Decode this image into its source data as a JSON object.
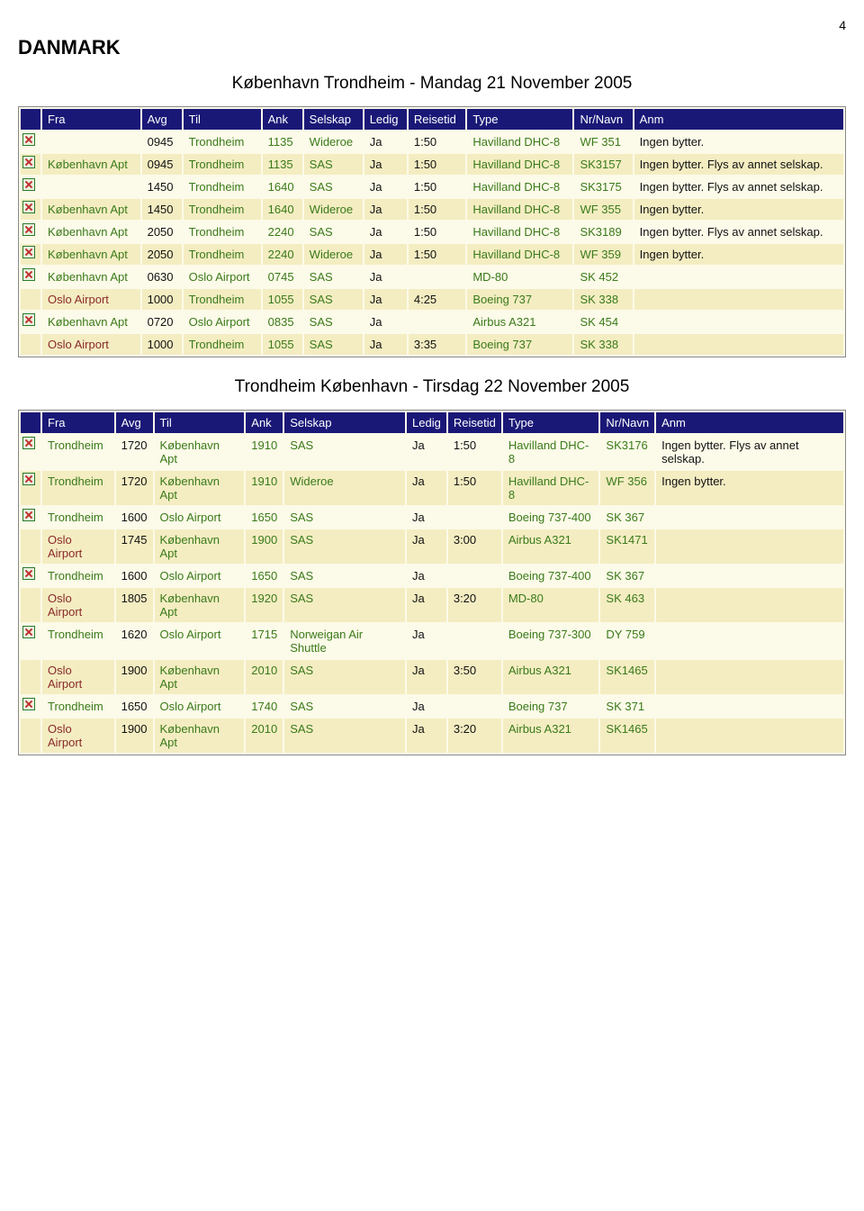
{
  "page_number": "4",
  "country_heading": "DANMARK",
  "colors": {
    "header_bg": "#1a1877",
    "header_text": "#ffffff",
    "row_even": "#fcfae8",
    "row_odd": "#f4edc2",
    "green": "#3a7a1a",
    "maroon": "#8a2a2a"
  },
  "section1": {
    "title": "København Trondheim - Mandag 21 November 2005",
    "headers": [
      "",
      "Fra",
      "Avg",
      "Til",
      "Ank",
      "Selskap",
      "Ledig",
      "Reisetid",
      "Type",
      "Nr/Navn",
      "Anm"
    ],
    "rows": [
      {
        "icon": true,
        "fra": "",
        "avg": "0945",
        "til": "Trondheim",
        "ank": "1135",
        "selskap": "Wideroe",
        "ledig": "Ja",
        "reisetid": "1:50",
        "type": "Havilland DHC-8",
        "nr": "WF 351",
        "anm": "Ingen bytter.",
        "greenCols": [
          "til",
          "ank",
          "selskap",
          "type",
          "nr"
        ]
      },
      {
        "icon": true,
        "fra": "København Apt",
        "avg": "0945",
        "til": "Trondheim",
        "ank": "1135",
        "selskap": "SAS",
        "ledig": "Ja",
        "reisetid": "1:50",
        "type": "Havilland DHC-8",
        "nr": "SK3157",
        "anm": "Ingen bytter. Flys av annet selskap.",
        "greenCols": [
          "fra",
          "til",
          "ank",
          "selskap",
          "type",
          "nr"
        ]
      },
      {
        "icon": true,
        "fra": "",
        "avg": "1450",
        "til": "Trondheim",
        "ank": "1640",
        "selskap": "SAS",
        "ledig": "Ja",
        "reisetid": "1:50",
        "type": "Havilland DHC-8",
        "nr": "SK3175",
        "anm": "Ingen bytter. Flys av annet selskap.",
        "greenCols": [
          "til",
          "ank",
          "selskap",
          "type",
          "nr"
        ]
      },
      {
        "icon": true,
        "fra": "København Apt",
        "avg": "1450",
        "til": "Trondheim",
        "ank": "1640",
        "selskap": "Wideroe",
        "ledig": "Ja",
        "reisetid": "1:50",
        "type": "Havilland DHC-8",
        "nr": "WF 355",
        "anm": "Ingen bytter.",
        "greenCols": [
          "fra",
          "til",
          "ank",
          "selskap",
          "type",
          "nr"
        ]
      },
      {
        "icon": true,
        "fra": "København Apt",
        "avg": "2050",
        "til": "Trondheim",
        "ank": "2240",
        "selskap": "SAS",
        "ledig": "Ja",
        "reisetid": "1:50",
        "type": "Havilland DHC-8",
        "nr": "SK3189",
        "anm": "Ingen bytter. Flys av annet selskap.",
        "greenCols": [
          "fra",
          "til",
          "ank",
          "selskap",
          "type",
          "nr"
        ]
      },
      {
        "icon": true,
        "fra": "København Apt",
        "avg": "2050",
        "til": "Trondheim",
        "ank": "2240",
        "selskap": "Wideroe",
        "ledig": "Ja",
        "reisetid": "1:50",
        "type": "Havilland DHC-8",
        "nr": "WF 359",
        "anm": "Ingen bytter.",
        "greenCols": [
          "fra",
          "til",
          "ank",
          "selskap",
          "type",
          "nr"
        ]
      },
      {
        "icon": true,
        "fra": "København Apt",
        "avg": "0630",
        "til": "Oslo Airport",
        "ank": "0745",
        "selskap": "SAS",
        "ledig": "Ja",
        "reisetid": "",
        "type": "MD-80",
        "nr": "SK 452",
        "anm": "",
        "greenCols": [
          "fra",
          "til",
          "ank",
          "selskap",
          "type",
          "nr"
        ]
      },
      {
        "icon": false,
        "fra": "Oslo Airport",
        "avg": "1000",
        "til": "Trondheim",
        "ank": "1055",
        "selskap": "SAS",
        "ledig": "Ja",
        "reisetid": "4:25",
        "type": "Boeing 737",
        "nr": "SK 338",
        "anm": "",
        "greenCols": [
          "til",
          "ank",
          "selskap",
          "type",
          "nr"
        ],
        "maroonCols": [
          "fra"
        ]
      },
      {
        "icon": true,
        "fra": "København Apt",
        "avg": "0720",
        "til": "Oslo Airport",
        "ank": "0835",
        "selskap": "SAS",
        "ledig": "Ja",
        "reisetid": "",
        "type": "Airbus A321",
        "nr": "SK 454",
        "anm": "",
        "greenCols": [
          "fra",
          "til",
          "ank",
          "selskap",
          "type",
          "nr"
        ]
      },
      {
        "icon": false,
        "fra": "Oslo Airport",
        "avg": "1000",
        "til": "Trondheim",
        "ank": "1055",
        "selskap": "SAS",
        "ledig": "Ja",
        "reisetid": "3:35",
        "type": "Boeing 737",
        "nr": "SK 338",
        "anm": "",
        "greenCols": [
          "til",
          "ank",
          "selskap",
          "type",
          "nr"
        ],
        "maroonCols": [
          "fra"
        ]
      }
    ]
  },
  "section2": {
    "title": "Trondheim København - Tirsdag 22 November 2005",
    "headers": [
      "",
      "Fra",
      "Avg",
      "Til",
      "Ank",
      "Selskap",
      "Ledig",
      "Reisetid",
      "Type",
      "Nr/Navn",
      "Anm"
    ],
    "rows": [
      {
        "icon": true,
        "fra": "Trondheim",
        "avg": "1720",
        "til": "København Apt",
        "ank": "1910",
        "selskap": "SAS",
        "ledig": "Ja",
        "reisetid": "1:50",
        "type": "Havilland DHC-8",
        "nr": "SK3176",
        "anm": "Ingen bytter. Flys av annet selskap.",
        "greenCols": [
          "fra",
          "til",
          "ank",
          "selskap",
          "type",
          "nr"
        ]
      },
      {
        "icon": true,
        "fra": "Trondheim",
        "avg": "1720",
        "til": "København Apt",
        "ank": "1910",
        "selskap": "Wideroe",
        "ledig": "Ja",
        "reisetid": "1:50",
        "type": "Havilland DHC-8",
        "nr": "WF 356",
        "anm": "Ingen bytter.",
        "greenCols": [
          "fra",
          "til",
          "ank",
          "selskap",
          "type",
          "nr"
        ]
      },
      {
        "icon": true,
        "fra": "Trondheim",
        "avg": "1600",
        "til": "Oslo Airport",
        "ank": "1650",
        "selskap": "SAS",
        "ledig": "Ja",
        "reisetid": "",
        "type": "Boeing 737-400",
        "nr": "SK 367",
        "anm": "",
        "greenCols": [
          "fra",
          "til",
          "ank",
          "selskap",
          "type",
          "nr"
        ]
      },
      {
        "icon": false,
        "fra": "Oslo Airport",
        "avg": "1745",
        "til": "København Apt",
        "ank": "1900",
        "selskap": "SAS",
        "ledig": "Ja",
        "reisetid": "3:00",
        "type": "Airbus A321",
        "nr": "SK1471",
        "anm": "",
        "greenCols": [
          "til",
          "ank",
          "selskap",
          "type",
          "nr"
        ],
        "maroonCols": [
          "fra"
        ]
      },
      {
        "icon": true,
        "fra": "Trondheim",
        "avg": "1600",
        "til": "Oslo Airport",
        "ank": "1650",
        "selskap": "SAS",
        "ledig": "Ja",
        "reisetid": "",
        "type": "Boeing 737-400",
        "nr": "SK 367",
        "anm": "",
        "greenCols": [
          "fra",
          "til",
          "ank",
          "selskap",
          "type",
          "nr"
        ]
      },
      {
        "icon": false,
        "fra": "Oslo Airport",
        "avg": "1805",
        "til": "København Apt",
        "ank": "1920",
        "selskap": "SAS",
        "ledig": "Ja",
        "reisetid": "3:20",
        "type": "MD-80",
        "nr": "SK 463",
        "anm": "",
        "greenCols": [
          "til",
          "ank",
          "selskap",
          "type",
          "nr"
        ],
        "maroonCols": [
          "fra"
        ]
      },
      {
        "icon": true,
        "fra": "Trondheim",
        "avg": "1620",
        "til": "Oslo Airport",
        "ank": "1715",
        "selskap": "Norweigan Air Shuttle",
        "ledig": "Ja",
        "reisetid": "",
        "type": "Boeing 737-300",
        "nr": "DY 759",
        "anm": "",
        "greenCols": [
          "fra",
          "til",
          "ank",
          "selskap",
          "type",
          "nr"
        ]
      },
      {
        "icon": false,
        "fra": "Oslo Airport",
        "avg": "1900",
        "til": "København Apt",
        "ank": "2010",
        "selskap": "SAS",
        "ledig": "Ja",
        "reisetid": "3:50",
        "type": "Airbus A321",
        "nr": "SK1465",
        "anm": "",
        "greenCols": [
          "til",
          "ank",
          "selskap",
          "type",
          "nr"
        ],
        "maroonCols": [
          "fra"
        ]
      },
      {
        "icon": true,
        "fra": "Trondheim",
        "avg": "1650",
        "til": "Oslo Airport",
        "ank": "1740",
        "selskap": "SAS",
        "ledig": "Ja",
        "reisetid": "",
        "type": "Boeing 737",
        "nr": "SK 371",
        "anm": "",
        "greenCols": [
          "fra",
          "til",
          "ank",
          "selskap",
          "type",
          "nr"
        ]
      },
      {
        "icon": false,
        "fra": "Oslo Airport",
        "avg": "1900",
        "til": "København Apt",
        "ank": "2010",
        "selskap": "SAS",
        "ledig": "Ja",
        "reisetid": "3:20",
        "type": "Airbus A321",
        "nr": "SK1465",
        "anm": "",
        "greenCols": [
          "til",
          "ank",
          "selskap",
          "type",
          "nr"
        ],
        "maroonCols": [
          "fra"
        ]
      }
    ]
  }
}
